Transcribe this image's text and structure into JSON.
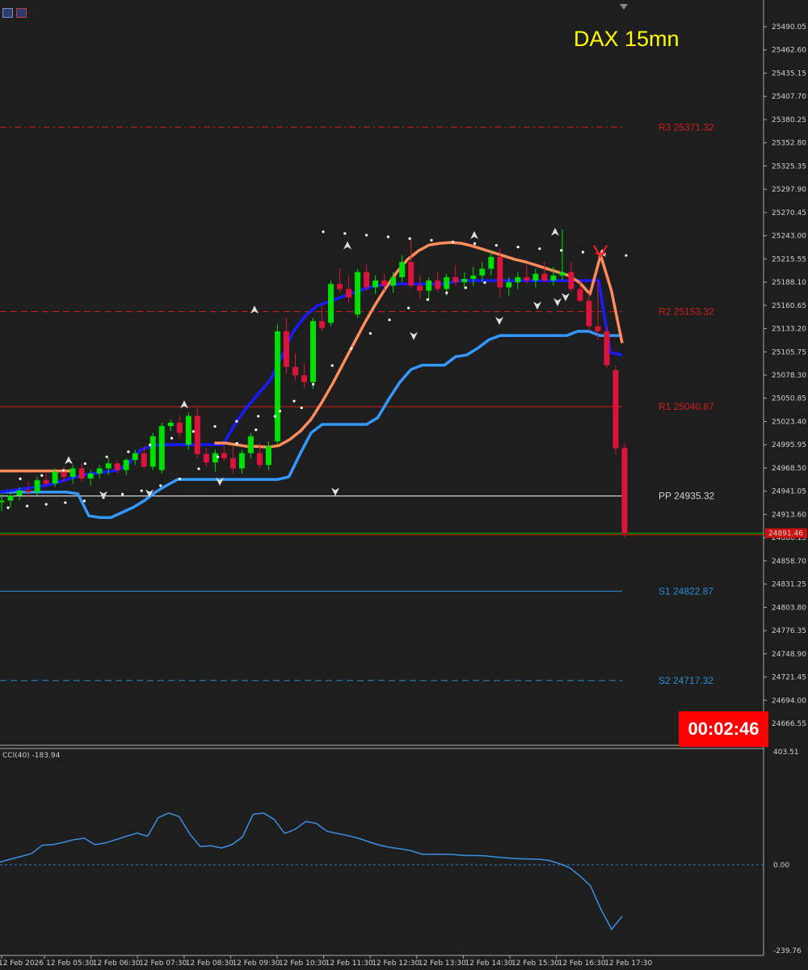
{
  "title": "DAX 15mn",
  "timer": "00:02:46",
  "colors": {
    "background": "#1e1e1e",
    "bull": "#00e000",
    "bear": "#dc143c",
    "fast_ma": "#ff8c5a",
    "mid_ma": "#1a1aff",
    "slow_ma": "#3399ff",
    "psar": "#ffffff",
    "cci": "#3d8fe0",
    "timer_bg": "#ff0000"
  },
  "toolbar": {
    "icons": [
      "chart-list-icon",
      "chart-flag-icon"
    ]
  },
  "chart_data": [
    {
      "type": "candlestick",
      "title": "DAX 15mn",
      "ylim": [
        24640,
        25518
      ],
      "price_ticks": [
        "25490.05",
        "25462.60",
        "25435.15",
        "25407.70",
        "25380.25",
        "25352.80",
        "25325.35",
        "25297.90",
        "25270.45",
        "25243.00",
        "25215.55",
        "25188.10",
        "25160.65",
        "25133.20",
        "25105.75",
        "25078.30",
        "25050.85",
        "25023.40",
        "24995.95",
        "24968.50",
        "24941.05",
        "24913.60",
        "24886.15",
        "24858.70",
        "24831.25",
        "24803.80",
        "24776.35",
        "24748.90",
        "24721.45",
        "24694.00",
        "24666.55"
      ],
      "current_price": "24891.46",
      "time_labels": [
        "12 Feb 2026",
        "12 Feb 05:30",
        "12 Feb 06:30",
        "12 Feb 07:30",
        "12 Feb 08:30",
        "12 Feb 09:30",
        "12 Feb 10:30",
        "12 Feb 11:30",
        "12 Feb 12:30",
        "12 Feb 13:30",
        "12 Feb 14:30",
        "12 Feb 15:30",
        "12 Feb 16:30",
        "12 Feb 17:30"
      ],
      "pivots": [
        {
          "name": "R3",
          "label": "R3 25371.32",
          "value": 25371.32,
          "color": "#d0201a",
          "dash": "8,4,2,4"
        },
        {
          "name": "R2",
          "label": "R2 25153.32",
          "value": 25153.32,
          "color": "#d0201a",
          "dash": "8,5"
        },
        {
          "name": "R1",
          "label": "R1 25040.87",
          "value": 25040.87,
          "color": "#d0201a",
          "dash": ""
        },
        {
          "name": "PP",
          "label": "PP 24935.32",
          "value": 24935.32,
          "color": "#ffffff",
          "dash": ""
        },
        {
          "name": "S1",
          "label": "S1 24822.87",
          "value": 24822.87,
          "color": "#2a8fd6",
          "dash": ""
        },
        {
          "name": "S2",
          "label": "S2 24717.32",
          "value": 24717.32,
          "color": "#2a8fd6",
          "dash": "8,5"
        }
      ],
      "candles": [
        [
          24928,
          24938,
          24918,
          24930
        ],
        [
          24930,
          24940,
          24922,
          24936
        ],
        [
          24936,
          24946,
          24930,
          24942
        ],
        [
          24942,
          24952,
          24934,
          24940
        ],
        [
          24940,
          24958,
          24936,
          24954
        ],
        [
          24954,
          24962,
          24948,
          24950
        ],
        [
          24950,
          24968,
          24946,
          24964
        ],
        [
          24964,
          24970,
          24952,
          24958
        ],
        [
          24958,
          24972,
          24950,
          24968
        ],
        [
          24968,
          24974,
          24952,
          24956
        ],
        [
          24956,
          24966,
          24948,
          24962
        ],
        [
          24962,
          24972,
          24956,
          24968
        ],
        [
          24968,
          24980,
          24960,
          24974
        ],
        [
          24974,
          24978,
          24962,
          24966
        ],
        [
          24966,
          24980,
          24960,
          24978
        ],
        [
          24978,
          24990,
          24972,
          24986
        ],
        [
          24986,
          24994,
          24968,
          24970
        ],
        [
          24970,
          25010,
          24966,
          25006
        ],
        [
          24966,
          25022,
          24962,
          25018
        ],
        [
          25018,
          25026,
          25012,
          25022
        ],
        [
          25022,
          25030,
          25004,
          25010
        ],
        [
          24996,
          25034,
          24990,
          25030
        ],
        [
          25030,
          25040,
          24980,
          24985
        ],
        [
          24985,
          24992,
          24970,
          24975
        ],
        [
          24975,
          24990,
          24964,
          24986
        ],
        [
          24986,
          24996,
          24976,
          24980
        ],
        [
          24980,
          24994,
          24962,
          24968
        ],
        [
          24968,
          24990,
          24962,
          24986
        ],
        [
          24986,
          25010,
          24980,
          25006
        ],
        [
          24986,
          24998,
          24968,
          24972
        ],
        [
          24972,
          25000,
          24966,
          24994
        ],
        [
          25000,
          25138,
          24996,
          25130
        ],
        [
          25130,
          25146,
          25080,
          25088
        ],
        [
          25088,
          25104,
          25072,
          25078
        ],
        [
          25078,
          25092,
          25062,
          25070
        ],
        [
          25070,
          25146,
          25062,
          25142
        ],
        [
          25142,
          25160,
          25130,
          25134
        ],
        [
          25140,
          25190,
          25136,
          25186
        ],
        [
          25186,
          25204,
          25176,
          25180
        ],
        [
          25180,
          25196,
          25164,
          25170
        ],
        [
          25150,
          25204,
          25146,
          25200
        ],
        [
          25200,
          25210,
          25178,
          25182
        ],
        [
          25182,
          25196,
          25174,
          25190
        ],
        [
          25190,
          25198,
          25178,
          25184
        ],
        [
          25184,
          25200,
          25176,
          25194
        ],
        [
          25194,
          25220,
          25188,
          25212
        ],
        [
          25212,
          25240,
          25180,
          25184
        ],
        [
          25184,
          25196,
          25168,
          25178
        ],
        [
          25178,
          25194,
          25166,
          25190
        ],
        [
          25190,
          25200,
          25176,
          25180
        ],
        [
          25180,
          25198,
          25172,
          25194
        ],
        [
          25194,
          25208,
          25184,
          25188
        ],
        [
          25188,
          25200,
          25180,
          25192
        ],
        [
          25192,
          25206,
          25184,
          25196
        ],
        [
          25196,
          25212,
          25188,
          25204
        ],
        [
          25204,
          25226,
          25196,
          25218
        ],
        [
          25218,
          25228,
          25170,
          25182
        ],
        [
          25182,
          25194,
          25172,
          25188
        ],
        [
          25188,
          25200,
          25180,
          25194
        ],
        [
          25194,
          25208,
          25186,
          25190
        ],
        [
          25190,
          25204,
          25182,
          25198
        ],
        [
          25198,
          25212,
          25188,
          25190
        ],
        [
          25190,
          25206,
          25184,
          25196
        ],
        [
          25196,
          25250,
          25190,
          25200
        ],
        [
          25200,
          25212,
          25176,
          25180
        ],
        [
          25180,
          25190,
          25164,
          25166
        ],
        [
          25166,
          25176,
          25130,
          25136
        ],
        [
          25136,
          25190,
          25120,
          25130
        ],
        [
          25130,
          25136,
          25086,
          25090
        ],
        [
          25084,
          25090,
          24984,
          24992
        ],
        [
          24992,
          24998,
          24886,
          24891
        ]
      ],
      "fast_ma": [
        24965,
        24965,
        24965,
        24965,
        24965,
        24965,
        24965,
        24965,
        null,
        null,
        null,
        null,
        null,
        null,
        null,
        null,
        null,
        null,
        null,
        null,
        24998,
        24998,
        24996,
        24994,
        24994,
        24993,
        24995,
        25002,
        25012,
        25026,
        25046,
        25068,
        25092,
        25116,
        25140,
        25162,
        25182,
        25200,
        25215,
        25225,
        25232,
        25234,
        25235,
        25234,
        25231,
        25227,
        25223,
        25219,
        25215,
        25212,
        25208,
        25204,
        25200,
        25196,
        25188,
        25174,
        25220,
        25178,
        25116
      ],
      "fast_ma_x_start": 0,
      "mid_ma": [
        24940,
        24942,
        24944,
        24946,
        24948,
        24952,
        24956,
        24960,
        24962,
        24964,
        24966,
        24974,
        24990,
        24995,
        24996,
        24996,
        24996,
        24996,
        24996,
        24996,
        25020,
        25040,
        25056,
        25072,
        25100,
        25130,
        25148,
        25160,
        25165,
        25170,
        25175,
        25180,
        25184,
        25185,
        25186,
        25186,
        25186,
        25186,
        25186,
        25190,
        25190,
        25190,
        25190,
        25190,
        25190,
        25190,
        25190,
        25190,
        25190,
        25190,
        25190,
        25190,
        25105,
        25102
      ],
      "slow_ma": [
        24940,
        24940,
        24940,
        24940,
        24940,
        24940,
        24940,
        24938,
        24912,
        24910,
        24910,
        24916,
        24922,
        24930,
        24940,
        24948,
        24955,
        24955,
        24955,
        24955,
        24955,
        24955,
        24955,
        24955,
        24955,
        24955,
        24958,
        24985,
        25010,
        25020,
        25020,
        25020,
        25020,
        25020,
        25028,
        25050,
        25070,
        25085,
        25090,
        25090,
        25090,
        25100,
        25102,
        25110,
        25120,
        25125,
        25125,
        25125,
        25125,
        25125,
        25125,
        25125,
        25130,
        25130,
        25125,
        25125,
        25125
      ],
      "psar_above": [
        24948,
        24952,
        24958,
        24966,
        24974,
        24980,
        24988,
        24996,
        25004,
        25010,
        25016,
        25022,
        25028,
        25032,
        25240,
        25238,
        25236,
        25234,
        25232,
        25230,
        25228,
        25226,
        25224,
        25222,
        25220,
        25218,
        25216,
        25214,
        25212
      ],
      "psar_below": [
        24912,
        24914,
        24916,
        24918,
        24920,
        24924,
        24928,
        24932,
        24938,
        24946,
        24958,
        24972,
        24988,
        25004,
        25020,
        25038,
        25058,
        25080,
        25100,
        25118,
        25134,
        25148,
        25158,
        25166,
        25172,
        25178
      ],
      "fractal_up": [
        24970,
        25036,
        25148,
        25224,
        25236,
        25240,
        25215
      ],
      "fractal_down": [
        24944,
        24946,
        24960,
        24948,
        25132,
        25150,
        25168,
        25172,
        25178
      ],
      "sell_signal": 25222
    },
    {
      "type": "line",
      "title": "CCI(40) -183.94",
      "ylim": [
        -239.76,
        403.51
      ],
      "tick_labels": [
        "403.51",
        "0.00",
        "-239.76"
      ],
      "zero_line": 0,
      "values": [
        10,
        20,
        30,
        40,
        70,
        72,
        80,
        90,
        95,
        72,
        78,
        90,
        102,
        113,
        102,
        168,
        185,
        172,
        110,
        65,
        68,
        60,
        72,
        100,
        180,
        185,
        162,
        112,
        127,
        155,
        148,
        120,
        112,
        104,
        95,
        82,
        70,
        62,
        57,
        50,
        38,
        38,
        38,
        37,
        33,
        33,
        32,
        28,
        25,
        22,
        21,
        20,
        16,
        5,
        -10,
        -40,
        -75,
        -160,
        -230,
        -183.94
      ],
      "x_start": 0
    }
  ]
}
